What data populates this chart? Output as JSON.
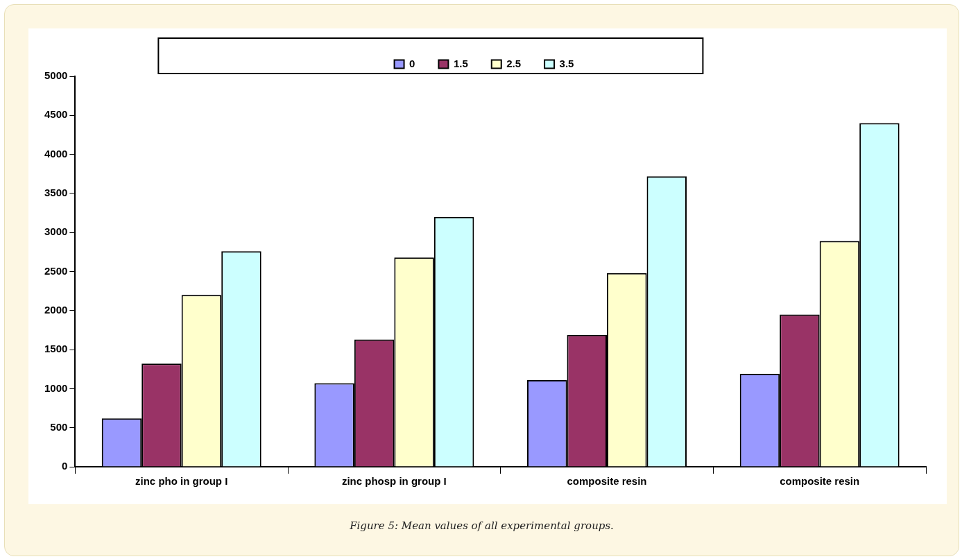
{
  "chart_data": {
    "type": "bar",
    "categories": [
      "zinc pho in group I",
      "zinc phosp in group I",
      "composite resin",
      "composite resin"
    ],
    "series": [
      {
        "name": "0",
        "color": "#9999ff",
        "values": [
          620,
          1070,
          1110,
          1190
        ]
      },
      {
        "name": "1.5",
        "color": "#993366",
        "values": [
          1320,
          1630,
          1690,
          1950
        ]
      },
      {
        "name": "2.5",
        "color": "#ffffcc",
        "values": [
          2200,
          2680,
          2480,
          2890
        ]
      },
      {
        "name": "3.5",
        "color": "#ccffff",
        "values": [
          2760,
          3200,
          3720,
          4400
        ]
      }
    ],
    "ylim": [
      0,
      5000
    ],
    "yticks": [
      0,
      500,
      1000,
      1500,
      2000,
      2500,
      3000,
      3500,
      4000,
      4500,
      5000
    ],
    "grid": false,
    "legend": "top",
    "annotations": [
      "Figure 5: Mean values of all experimental groups."
    ]
  }
}
